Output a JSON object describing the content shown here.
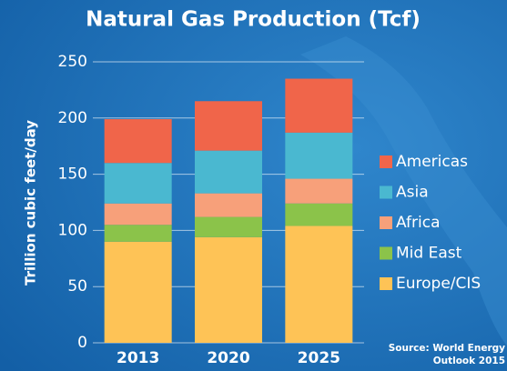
{
  "chart_data": {
    "type": "stacked-bar",
    "title": "Natural Gas Production (Tcf)",
    "y_label": "Trillion cubic feet/day",
    "categories": [
      "2013",
      "2020",
      "2025"
    ],
    "series": [
      {
        "name": "Europe/CIS",
        "color": "#fec356",
        "values": [
          90,
          94,
          104
        ]
      },
      {
        "name": "Mid East",
        "color": "#8bc34a",
        "values": [
          15,
          18,
          20
        ]
      },
      {
        "name": "Africa",
        "color": "#f7a07a",
        "values": [
          19,
          21,
          22
        ]
      },
      {
        "name": "Asia",
        "color": "#4ab8d0",
        "values": [
          36,
          38,
          41
        ]
      },
      {
        "name": "Americas",
        "color": "#f0654a",
        "values": [
          39,
          44,
          48
        ]
      }
    ],
    "ylim": [
      0,
      250
    ],
    "yticks": [
      0,
      50,
      100,
      150,
      200,
      250
    ],
    "grid": true,
    "legend": "right",
    "source": [
      "Source: World Energy",
      "Outlook 2015"
    ]
  }
}
